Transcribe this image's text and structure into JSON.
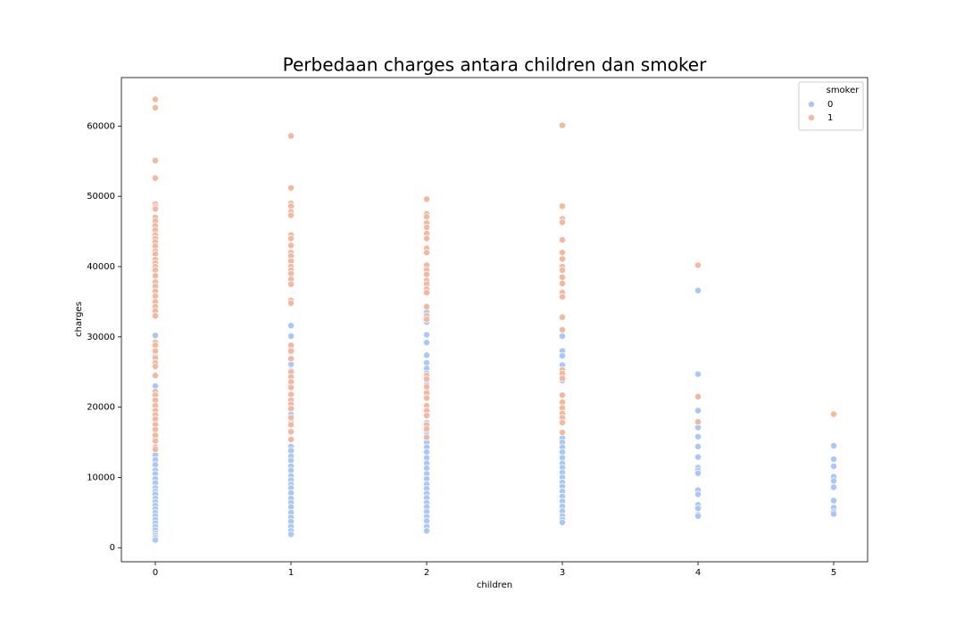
{
  "chart_data": {
    "type": "scatter",
    "title": "Perbedaan charges antara children dan smoker",
    "x_label": "children",
    "y_label": "charges",
    "xlim": [
      -0.25,
      5.25
    ],
    "ylim": [
      -2000,
      66900
    ],
    "xticks": [
      0,
      1,
      2,
      3,
      4,
      5
    ],
    "yticks": [
      0,
      10000,
      20000,
      30000,
      40000,
      50000,
      60000
    ],
    "legend_title": "smoker",
    "legend": "upper right",
    "series": [
      {
        "name": "0",
        "color": "#aac7fd",
        "x": [
          0,
          0,
          0,
          0,
          0,
          0,
          0,
          0,
          0,
          0,
          0,
          0,
          0,
          0,
          0,
          0,
          0,
          0,
          0,
          0,
          0,
          0,
          0,
          0,
          0,
          0,
          0,
          0,
          0,
          0,
          0,
          0,
          0,
          0,
          0,
          0,
          0,
          0,
          0,
          0,
          1,
          1,
          1,
          1,
          1,
          1,
          1,
          1,
          1,
          1,
          1,
          1,
          1,
          1,
          1,
          1,
          1,
          1,
          1,
          1,
          1,
          1,
          1,
          1,
          1,
          1,
          1,
          1,
          1,
          1,
          1,
          2,
          2,
          2,
          2,
          2,
          2,
          2,
          2,
          2,
          2,
          2,
          2,
          2,
          2,
          2,
          2,
          2,
          2,
          2,
          2,
          2,
          2,
          2,
          2,
          2,
          2,
          2,
          2,
          2,
          2,
          2,
          2,
          2,
          2,
          2,
          2,
          2,
          3,
          3,
          3,
          3,
          3,
          3,
          3,
          3,
          3,
          3,
          3,
          3,
          3,
          3,
          3,
          3,
          3,
          3,
          3,
          3,
          3,
          3,
          3,
          3,
          3,
          3,
          3,
          3,
          4,
          4,
          4,
          4,
          4,
          4,
          4,
          4,
          4,
          4,
          4,
          4,
          4,
          4,
          4,
          4,
          5,
          5,
          5,
          5,
          5,
          5,
          5,
          5,
          5,
          5
        ],
        "values": [
          30200,
          29200,
          27300,
          26100,
          24600,
          23000,
          22000,
          21600,
          20800,
          19900,
          18300,
          17700,
          16800,
          15600,
          15000,
          14200,
          13200,
          12500,
          11800,
          11000,
          10500,
          9800,
          9200,
          8500,
          8000,
          7600,
          7000,
          6500,
          6000,
          5500,
          5000,
          4500,
          4000,
          3500,
          3000,
          2500,
          2000,
          1700,
          1400,
          1100,
          31600,
          30100,
          28500,
          27800,
          27000,
          26100,
          25200,
          24300,
          23100,
          19000,
          17800,
          14400,
          13800,
          13000,
          12400,
          11600,
          11000,
          10200,
          9600,
          9000,
          8500,
          7800,
          7000,
          6400,
          5800,
          5000,
          4300,
          3700,
          3000,
          2400,
          1900,
          33500,
          32900,
          32100,
          30300,
          29200,
          27400,
          26300,
          25500,
          24800,
          23800,
          23200,
          22300,
          21300,
          19800,
          19000,
          17800,
          16500,
          16000,
          15000,
          14300,
          13600,
          12800,
          12000,
          11300,
          10500,
          9800,
          9000,
          8400,
          7700,
          7100,
          6400,
          5800,
          5100,
          4400,
          3800,
          3000,
          2400,
          30100,
          28000,
          27300,
          26000,
          25100,
          23800,
          20500,
          20000,
          19500,
          15600,
          15000,
          14300,
          13600,
          12800,
          12000,
          11400,
          10700,
          10000,
          9300,
          8700,
          8000,
          7300,
          6600,
          5900,
          5200,
          4500,
          4000,
          3600,
          36600,
          24700,
          19500,
          17100,
          15800,
          14400,
          12900,
          11400,
          11000,
          10600,
          8200,
          7600,
          6100,
          5600,
          4700,
          4500,
          14500,
          12600,
          11600,
          10100,
          9500,
          8600,
          6700,
          5700,
          5100,
          4800
        ]
      },
      {
        "name": "1",
        "color": "#f5b89e",
        "x": [
          0,
          0,
          0,
          0,
          0,
          0,
          0,
          0,
          0,
          0,
          0,
          0,
          0,
          0,
          0,
          0,
          0,
          0,
          0,
          0,
          0,
          0,
          0,
          0,
          0,
          0,
          0,
          0,
          0,
          0,
          0,
          0,
          0,
          0,
          0,
          0,
          0,
          0,
          0,
          0,
          0,
          0,
          0,
          0,
          0,
          0,
          0,
          0,
          0,
          0,
          1,
          1,
          1,
          1,
          1,
          1,
          1,
          1,
          1,
          1,
          1,
          1,
          1,
          1,
          1,
          1,
          1,
          1,
          1,
          1,
          1,
          1,
          1,
          1,
          1,
          1,
          1,
          1,
          1,
          1,
          1,
          1,
          1,
          1,
          2,
          2,
          2,
          2,
          2,
          2,
          2,
          2,
          2,
          2,
          2,
          2,
          2,
          2,
          2,
          2,
          2,
          2,
          2,
          2,
          2,
          2,
          2,
          2,
          2,
          2,
          2,
          2,
          2,
          2,
          3,
          3,
          3,
          3,
          3,
          3,
          3,
          3,
          3,
          3,
          3,
          3,
          3,
          3,
          3,
          3,
          3,
          3,
          3,
          3,
          3,
          3,
          3,
          3,
          3,
          4,
          4,
          4,
          5
        ],
        "values": [
          63800,
          62600,
          55100,
          52600,
          48900,
          48500,
          48200,
          47000,
          46500,
          45800,
          45200,
          44500,
          44000,
          43500,
          42900,
          42200,
          41800,
          41000,
          40500,
          40000,
          39500,
          38700,
          37800,
          37200,
          36500,
          35800,
          35000,
          34300,
          33700,
          33000,
          29200,
          28800,
          28000,
          27000,
          26300,
          25800,
          24500,
          22200,
          21700,
          21000,
          20200,
          19500,
          18900,
          18300,
          17500,
          16800,
          16000,
          15200,
          14300,
          14000,
          58600,
          51200,
          49000,
          48600,
          47800,
          47300,
          44500,
          44000,
          43000,
          42000,
          41500,
          40800,
          40000,
          39500,
          39000,
          38200,
          37500,
          35200,
          34800,
          28800,
          28000,
          26900,
          25000,
          24300,
          23600,
          22800,
          21800,
          21000,
          20400,
          19800,
          18500,
          17500,
          16500,
          15400,
          49600,
          47500,
          47100,
          46200,
          45600,
          44700,
          44000,
          42600,
          42000,
          40200,
          39500,
          38900,
          38000,
          37500,
          36800,
          36300,
          34300,
          33000,
          32500,
          24500,
          24000,
          22900,
          22000,
          21300,
          20200,
          19500,
          18800,
          17500,
          16900,
          15700,
          60100,
          48600,
          46800,
          46300,
          43800,
          42000,
          41100,
          40000,
          39500,
          38500,
          37600,
          36300,
          35700,
          32800,
          31000,
          25300,
          24800,
          24100,
          21700,
          20700,
          19900,
          19100,
          18500,
          17800,
          16400,
          40200,
          21500,
          17900,
          19000
        ]
      }
    ]
  }
}
